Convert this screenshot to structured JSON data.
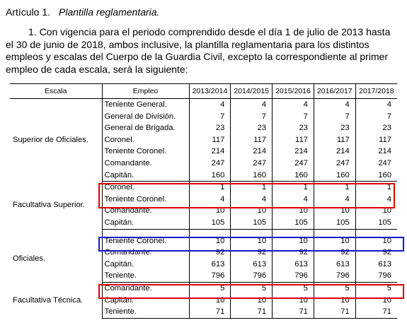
{
  "article": {
    "label": "Artículo 1.",
    "title": "Plantilla reglamentaria."
  },
  "paragraph": "1.   Con vigencia para el periodo comprendido desde el día 1 de julio de 2013 hasta el 30 de junio de 2018, ambos inclusive, la plantilla reglamentaria para los distintos empleos y escalas del Cuerpo de la Guardia Civil, excepto la correspondiente al primer empleo de cada escala, será la siguiente:",
  "table": {
    "headers": [
      "Escala",
      "Empleo",
      "2013/2014",
      "2014/2015",
      "2015/2016",
      "2016/2017",
      "2017/2018"
    ],
    "groups": [
      {
        "escala": "Superior de Oficiales.",
        "rows": [
          {
            "empleo": "Teniente General.",
            "values": [
              "4",
              "4",
              "4",
              "4",
              "4"
            ]
          },
          {
            "empleo": "General de División.",
            "values": [
              "7",
              "7",
              "7",
              "7",
              "7"
            ]
          },
          {
            "empleo": "General de Brigada.",
            "values": [
              "23",
              "23",
              "23",
              "23",
              "23"
            ]
          },
          {
            "empleo": "Coronel.",
            "values": [
              "117",
              "117",
              "117",
              "117",
              "117"
            ]
          },
          {
            "empleo": "Teniente Coronel.",
            "values": [
              "214",
              "214",
              "214",
              "214",
              "214"
            ]
          },
          {
            "empleo": "Comandante.",
            "values": [
              "247",
              "247",
              "247",
              "247",
              "247"
            ]
          },
          {
            "empleo": "Capitán.",
            "values": [
              "160",
              "160",
              "160",
              "160",
              "160"
            ]
          }
        ]
      },
      {
        "escala": "Facultativa Superior.",
        "rows": [
          {
            "empleo": "Coronel.",
            "values": [
              "1",
              "1",
              "1",
              "1",
              "1"
            ]
          },
          {
            "empleo": "Teniente Coronel.",
            "values": [
              "4",
              "4",
              "4",
              "4",
              "4"
            ]
          },
          {
            "empleo": "Comandante.",
            "values": [
              "10",
              "10",
              "10",
              "10",
              "10"
            ]
          },
          {
            "empleo": "Capitán.",
            "values": [
              "105",
              "105",
              "105",
              "105",
              "105"
            ]
          }
        ]
      },
      {
        "escala": "Oficiales.",
        "rows": [
          {
            "empleo": "Teniente Coronel.",
            "values": [
              "10",
              "10",
              "10",
              "10",
              "10"
            ]
          },
          {
            "empleo": "Comandante.",
            "values": [
              "92",
              "92",
              "92",
              "92",
              "92"
            ]
          },
          {
            "empleo": "Capitán.",
            "values": [
              "613",
              "613",
              "613",
              "613",
              "613"
            ]
          },
          {
            "empleo": "Teniente.",
            "values": [
              "796",
              "796",
              "796",
              "796",
              "796"
            ]
          }
        ]
      },
      {
        "escala": "Facultativa Técnica.",
        "rows": [
          {
            "empleo": "Comandante.",
            "values": [
              "5",
              "5",
              "5",
              "5",
              "5"
            ]
          },
          {
            "empleo": "Capitán.",
            "values": [
              "10",
              "10",
              "10",
              "10",
              "10"
            ]
          },
          {
            "empleo": "Teniente.",
            "values": [
              "71",
              "71",
              "71",
              "71",
              "71"
            ]
          }
        ]
      }
    ]
  },
  "highlight_colors": {
    "red": "#e00000",
    "blue": "#1616c8"
  }
}
